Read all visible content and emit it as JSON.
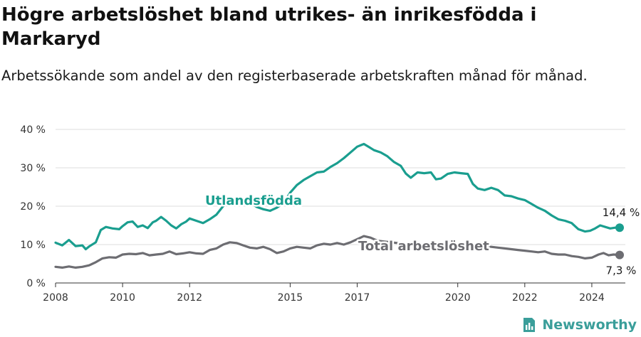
{
  "header": {
    "title": "Högre arbetslöshet bland utrikes- än inrikesfödda i Markaryd",
    "subtitle": "Arbetssökande som andel av den registerbaserade arbetskraften månad för månad."
  },
  "brand": {
    "name": "Newsworthy",
    "icon": "newsworthy-logo-icon",
    "color": "#3a9e9a"
  },
  "chart_data": {
    "type": "line",
    "title": "Högre arbetslöshet bland utrikes- än inrikesfödda i Markaryd",
    "subtitle": "Arbetssökande som andel av den registerbaserade arbetskraften månad för månad.",
    "xlim": [
      2008,
      2025
    ],
    "ylim": [
      0,
      40
    ],
    "x_ticks": [
      2008,
      2010,
      2012,
      2015,
      2017,
      2020,
      2022,
      2024
    ],
    "x_tick_labels": [
      "2008",
      "2010",
      "2012",
      "2015",
      "2017",
      "2020",
      "2022",
      "2024"
    ],
    "y_ticks": [
      0,
      10,
      20,
      30,
      40
    ],
    "y_tick_labels": [
      "0 %",
      "10 %",
      "20 %",
      "30 %",
      "40 %"
    ],
    "grid": true,
    "legend": "none (series labelled directly on chart)",
    "series": [
      {
        "name": "Utlandsfödda",
        "color": "#1a9e8f",
        "end_label": "14,4 %",
        "points": [
          [
            2008.0,
            10.5
          ],
          [
            2008.2,
            9.8
          ],
          [
            2008.4,
            11.2
          ],
          [
            2008.6,
            9.6
          ],
          [
            2008.8,
            9.8
          ],
          [
            2008.9,
            8.8
          ],
          [
            2009.0,
            9.5
          ],
          [
            2009.2,
            10.6
          ],
          [
            2009.35,
            13.8
          ],
          [
            2009.5,
            14.6
          ],
          [
            2009.7,
            14.2
          ],
          [
            2009.9,
            14.0
          ],
          [
            2010.0,
            14.8
          ],
          [
            2010.15,
            15.8
          ],
          [
            2010.3,
            16.0
          ],
          [
            2010.45,
            14.6
          ],
          [
            2010.6,
            15.0
          ],
          [
            2010.75,
            14.3
          ],
          [
            2010.9,
            15.8
          ],
          [
            2011.0,
            16.2
          ],
          [
            2011.15,
            17.2
          ],
          [
            2011.3,
            16.2
          ],
          [
            2011.45,
            15.0
          ],
          [
            2011.6,
            14.2
          ],
          [
            2011.75,
            15.3
          ],
          [
            2011.9,
            16.0
          ],
          [
            2012.0,
            16.8
          ],
          [
            2012.2,
            16.2
          ],
          [
            2012.4,
            15.6
          ],
          [
            2012.6,
            16.6
          ],
          [
            2012.8,
            17.8
          ],
          [
            2013.0,
            20.0
          ],
          [
            2013.2,
            21.0
          ],
          [
            2013.4,
            22.0
          ],
          [
            2013.6,
            21.4
          ],
          [
            2013.8,
            21.0
          ],
          [
            2014.0,
            19.8
          ],
          [
            2014.2,
            19.2
          ],
          [
            2014.4,
            18.8
          ],
          [
            2014.6,
            19.6
          ],
          [
            2014.8,
            20.8
          ],
          [
            2015.0,
            23.5
          ],
          [
            2015.2,
            25.5
          ],
          [
            2015.4,
            26.8
          ],
          [
            2015.6,
            27.8
          ],
          [
            2015.8,
            28.8
          ],
          [
            2016.0,
            29.0
          ],
          [
            2016.2,
            30.2
          ],
          [
            2016.4,
            31.2
          ],
          [
            2016.6,
            32.5
          ],
          [
            2016.8,
            34.0
          ],
          [
            2017.0,
            35.5
          ],
          [
            2017.2,
            36.2
          ],
          [
            2017.35,
            35.4
          ],
          [
            2017.5,
            34.6
          ],
          [
            2017.7,
            34.0
          ],
          [
            2017.9,
            33.0
          ],
          [
            2018.1,
            31.5
          ],
          [
            2018.3,
            30.5
          ],
          [
            2018.45,
            28.5
          ],
          [
            2018.6,
            27.4
          ],
          [
            2018.8,
            28.8
          ],
          [
            2019.0,
            28.6
          ],
          [
            2019.2,
            28.8
          ],
          [
            2019.35,
            27.0
          ],
          [
            2019.5,
            27.2
          ],
          [
            2019.7,
            28.4
          ],
          [
            2019.9,
            28.8
          ],
          [
            2020.1,
            28.6
          ],
          [
            2020.3,
            28.4
          ],
          [
            2020.45,
            25.8
          ],
          [
            2020.6,
            24.6
          ],
          [
            2020.8,
            24.2
          ],
          [
            2021.0,
            24.8
          ],
          [
            2021.2,
            24.2
          ],
          [
            2021.4,
            22.8
          ],
          [
            2021.6,
            22.6
          ],
          [
            2021.8,
            22.0
          ],
          [
            2022.0,
            21.6
          ],
          [
            2022.2,
            20.6
          ],
          [
            2022.4,
            19.6
          ],
          [
            2022.6,
            18.8
          ],
          [
            2022.8,
            17.6
          ],
          [
            2023.0,
            16.6
          ],
          [
            2023.2,
            16.2
          ],
          [
            2023.4,
            15.6
          ],
          [
            2023.6,
            14.0
          ],
          [
            2023.8,
            13.4
          ],
          [
            2023.95,
            13.6
          ],
          [
            2024.1,
            14.2
          ],
          [
            2024.25,
            15.0
          ],
          [
            2024.4,
            14.6
          ],
          [
            2024.55,
            14.2
          ],
          [
            2024.7,
            14.4
          ],
          [
            2024.83,
            14.4
          ]
        ]
      },
      {
        "name": "Total arbetslöshet",
        "color": "#6d6d72",
        "end_label": "7,3 %",
        "points": [
          [
            2008.0,
            4.2
          ],
          [
            2008.2,
            4.0
          ],
          [
            2008.4,
            4.3
          ],
          [
            2008.6,
            4.0
          ],
          [
            2008.8,
            4.2
          ],
          [
            2009.0,
            4.6
          ],
          [
            2009.2,
            5.4
          ],
          [
            2009.4,
            6.4
          ],
          [
            2009.6,
            6.7
          ],
          [
            2009.8,
            6.6
          ],
          [
            2010.0,
            7.4
          ],
          [
            2010.2,
            7.6
          ],
          [
            2010.4,
            7.5
          ],
          [
            2010.6,
            7.8
          ],
          [
            2010.8,
            7.2
          ],
          [
            2011.0,
            7.4
          ],
          [
            2011.2,
            7.6
          ],
          [
            2011.4,
            8.2
          ],
          [
            2011.6,
            7.5
          ],
          [
            2011.8,
            7.7
          ],
          [
            2012.0,
            8.0
          ],
          [
            2012.2,
            7.7
          ],
          [
            2012.4,
            7.6
          ],
          [
            2012.6,
            8.6
          ],
          [
            2012.8,
            9.0
          ],
          [
            2013.0,
            10.0
          ],
          [
            2013.2,
            10.6
          ],
          [
            2013.4,
            10.4
          ],
          [
            2013.6,
            9.8
          ],
          [
            2013.8,
            9.2
          ],
          [
            2014.0,
            9.0
          ],
          [
            2014.2,
            9.4
          ],
          [
            2014.4,
            8.8
          ],
          [
            2014.6,
            7.8
          ],
          [
            2014.8,
            8.2
          ],
          [
            2015.0,
            9.0
          ],
          [
            2015.2,
            9.4
          ],
          [
            2015.4,
            9.2
          ],
          [
            2015.6,
            9.0
          ],
          [
            2015.8,
            9.8
          ],
          [
            2016.0,
            10.2
          ],
          [
            2016.2,
            10.0
          ],
          [
            2016.4,
            10.4
          ],
          [
            2016.6,
            10.0
          ],
          [
            2016.8,
            10.6
          ],
          [
            2017.0,
            11.4
          ],
          [
            2017.2,
            12.2
          ],
          [
            2017.4,
            11.8
          ],
          [
            2017.6,
            11.0
          ],
          [
            2017.8,
            10.8
          ],
          [
            2018.0,
            10.6
          ],
          [
            2018.2,
            10.4
          ],
          [
            2018.4,
            10.2
          ],
          [
            2018.6,
            10.0
          ],
          [
            2018.8,
            9.8
          ],
          [
            2019.0,
            10.0
          ],
          [
            2019.2,
            10.2
          ],
          [
            2019.4,
            9.8
          ],
          [
            2019.6,
            9.6
          ],
          [
            2019.8,
            9.8
          ],
          [
            2020.0,
            10.0
          ],
          [
            2020.2,
            10.2
          ],
          [
            2020.4,
            10.0
          ],
          [
            2020.6,
            9.8
          ],
          [
            2020.8,
            9.6
          ],
          [
            2021.0,
            9.4
          ],
          [
            2021.2,
            9.2
          ],
          [
            2021.4,
            9.0
          ],
          [
            2021.6,
            8.8
          ],
          [
            2021.8,
            8.6
          ],
          [
            2022.0,
            8.4
          ],
          [
            2022.2,
            8.2
          ],
          [
            2022.4,
            8.0
          ],
          [
            2022.6,
            8.2
          ],
          [
            2022.8,
            7.6
          ],
          [
            2023.0,
            7.4
          ],
          [
            2023.2,
            7.4
          ],
          [
            2023.4,
            7.0
          ],
          [
            2023.6,
            6.8
          ],
          [
            2023.8,
            6.4
          ],
          [
            2024.0,
            6.6
          ],
          [
            2024.2,
            7.4
          ],
          [
            2024.35,
            7.8
          ],
          [
            2024.5,
            7.2
          ],
          [
            2024.65,
            7.4
          ],
          [
            2024.83,
            7.3
          ]
        ]
      }
    ]
  }
}
